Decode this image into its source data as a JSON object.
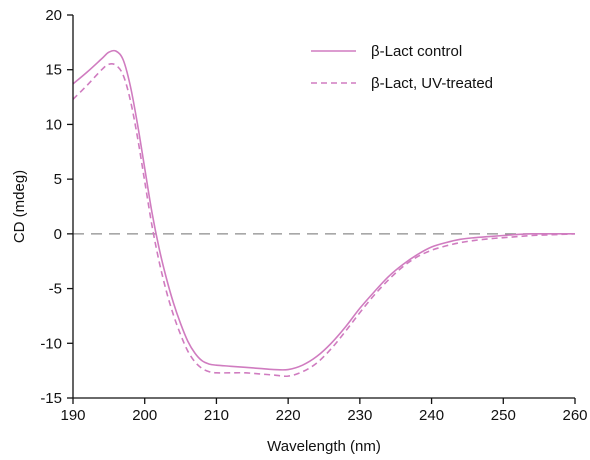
{
  "chart_data": {
    "type": "line",
    "title": "",
    "xlabel": "Wavelength (nm)",
    "ylabel": "CD (mdeg)",
    "xlim": [
      190,
      260
    ],
    "ylim": [
      -15,
      20
    ],
    "xticks": [
      190,
      200,
      210,
      220,
      230,
      240,
      250,
      260
    ],
    "yticks": [
      -15,
      -10,
      -5,
      0,
      5,
      10,
      15,
      20
    ],
    "xtick_labels": [
      "190",
      "200",
      "210",
      "220",
      "230",
      "240",
      "250",
      "260"
    ],
    "ytick_labels": [
      "-15",
      "-10",
      "-5",
      "0",
      "5",
      "10",
      "15",
      "20"
    ],
    "grid": false,
    "legend_position": "top-right",
    "reference_line": {
      "y": 0,
      "style": "dashed",
      "color": "#8c8c8c"
    },
    "series": [
      {
        "name": "β-Lact control",
        "style": "solid",
        "color": "#d07cc0",
        "x": [
          190,
          192,
          194,
          195,
          196,
          197,
          198,
          199,
          200,
          201,
          202,
          203,
          204,
          205,
          206,
          207,
          208,
          209,
          210,
          212,
          214,
          216,
          218,
          220,
          222,
          224,
          226,
          228,
          230,
          232,
          234,
          236,
          238,
          240,
          242,
          244,
          246,
          248,
          250,
          252,
          254,
          256,
          258,
          260
        ],
        "y": [
          13.7,
          14.8,
          16.0,
          16.6,
          16.7,
          15.9,
          13.5,
          10.0,
          6.0,
          2.0,
          -1.3,
          -4.0,
          -6.3,
          -8.2,
          -9.8,
          -10.9,
          -11.6,
          -11.9,
          -12.0,
          -12.1,
          -12.2,
          -12.3,
          -12.4,
          -12.4,
          -12.0,
          -11.2,
          -10.0,
          -8.5,
          -6.8,
          -5.3,
          -3.9,
          -2.8,
          -1.9,
          -1.2,
          -0.8,
          -0.5,
          -0.35,
          -0.25,
          -0.15,
          -0.05,
          0.0,
          0.0,
          0.0,
          0.0
        ]
      },
      {
        "name": "β-Lact, UV-treated",
        "style": "dashed",
        "color": "#d07cc0",
        "x": [
          190,
          192,
          194,
          195,
          196,
          197,
          198,
          199,
          200,
          201,
          202,
          203,
          204,
          205,
          206,
          207,
          208,
          209,
          210,
          212,
          214,
          216,
          218,
          220,
          222,
          224,
          226,
          228,
          230,
          232,
          234,
          236,
          238,
          240,
          242,
          244,
          246,
          248,
          250,
          252,
          254,
          256,
          258,
          260
        ],
        "y": [
          12.3,
          13.6,
          15.0,
          15.5,
          15.4,
          14.5,
          12.2,
          8.8,
          4.8,
          0.8,
          -2.5,
          -5.2,
          -7.4,
          -9.2,
          -10.7,
          -11.7,
          -12.3,
          -12.6,
          -12.7,
          -12.7,
          -12.7,
          -12.8,
          -12.9,
          -13.0,
          -12.6,
          -11.8,
          -10.5,
          -8.9,
          -7.2,
          -5.6,
          -4.2,
          -3.0,
          -2.1,
          -1.5,
          -1.1,
          -0.8,
          -0.6,
          -0.45,
          -0.35,
          -0.25,
          -0.15,
          -0.1,
          -0.05,
          0.0
        ]
      }
    ]
  }
}
